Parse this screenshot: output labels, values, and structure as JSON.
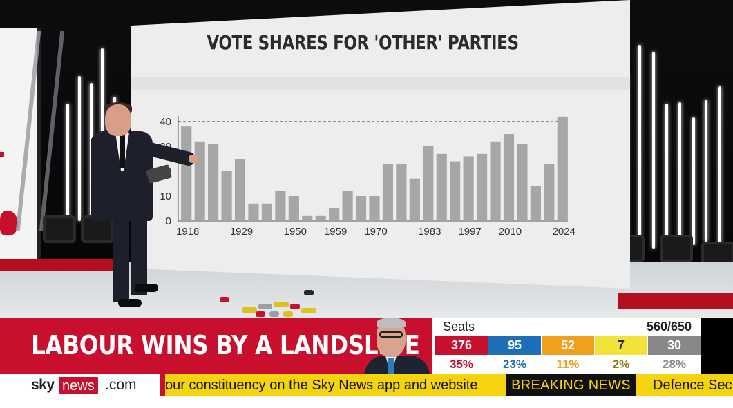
{
  "screen": {
    "title": "VOTE SHARES FOR 'OTHER' PARTIES"
  },
  "chart_data": {
    "type": "bar",
    "title": "VOTE SHARES FOR 'OTHER' PARTIES",
    "xlabel": "",
    "ylabel": "",
    "ylim": [
      0,
      40
    ],
    "yticks": [
      "0",
      "10",
      "20",
      "30",
      "40"
    ],
    "x_tick_labels": [
      "1918",
      "1929",
      "1950",
      "1959",
      "1970",
      "1983",
      "1997",
      "2010",
      "2024"
    ],
    "reference_line": 40,
    "values": [
      38,
      32,
      31,
      20,
      25,
      7,
      7,
      12,
      10,
      2,
      2,
      5,
      12,
      10,
      10,
      23,
      23,
      17,
      30,
      27,
      24,
      26,
      27,
      32,
      35,
      31,
      14,
      23,
      42
    ],
    "bar_color": "#a6a6a6"
  },
  "lower_third": {
    "headline": "LABOUR WINS BY A LANDSLIDE",
    "seats_label": "Seats",
    "seats_total": "560/650",
    "parties": [
      {
        "seats": "376",
        "share": "35%",
        "color": "#c8102e",
        "share_color": "#c8102e"
      },
      {
        "seats": "95",
        "share": "23%",
        "color": "#1f6fb8",
        "share_color": "#1f6fb8"
      },
      {
        "seats": "52",
        "share": "11%",
        "color": "#f0a01e",
        "share_color": "#f0a01e"
      },
      {
        "seats": "7",
        "share": "2%",
        "color": "#f3e23a",
        "share_color": "#8c7f10"
      },
      {
        "seats": "30",
        "share": "28%",
        "color": "#888888",
        "share_color": "#888888"
      }
    ]
  },
  "ticker": {
    "logo_sky": "sky",
    "logo_news": "news",
    "logo_com": ".com",
    "scroll_text": "our constituency on the Sky News app and website",
    "breaking_label": "BREAKING NEWS",
    "next_text": "Defence Sec"
  }
}
